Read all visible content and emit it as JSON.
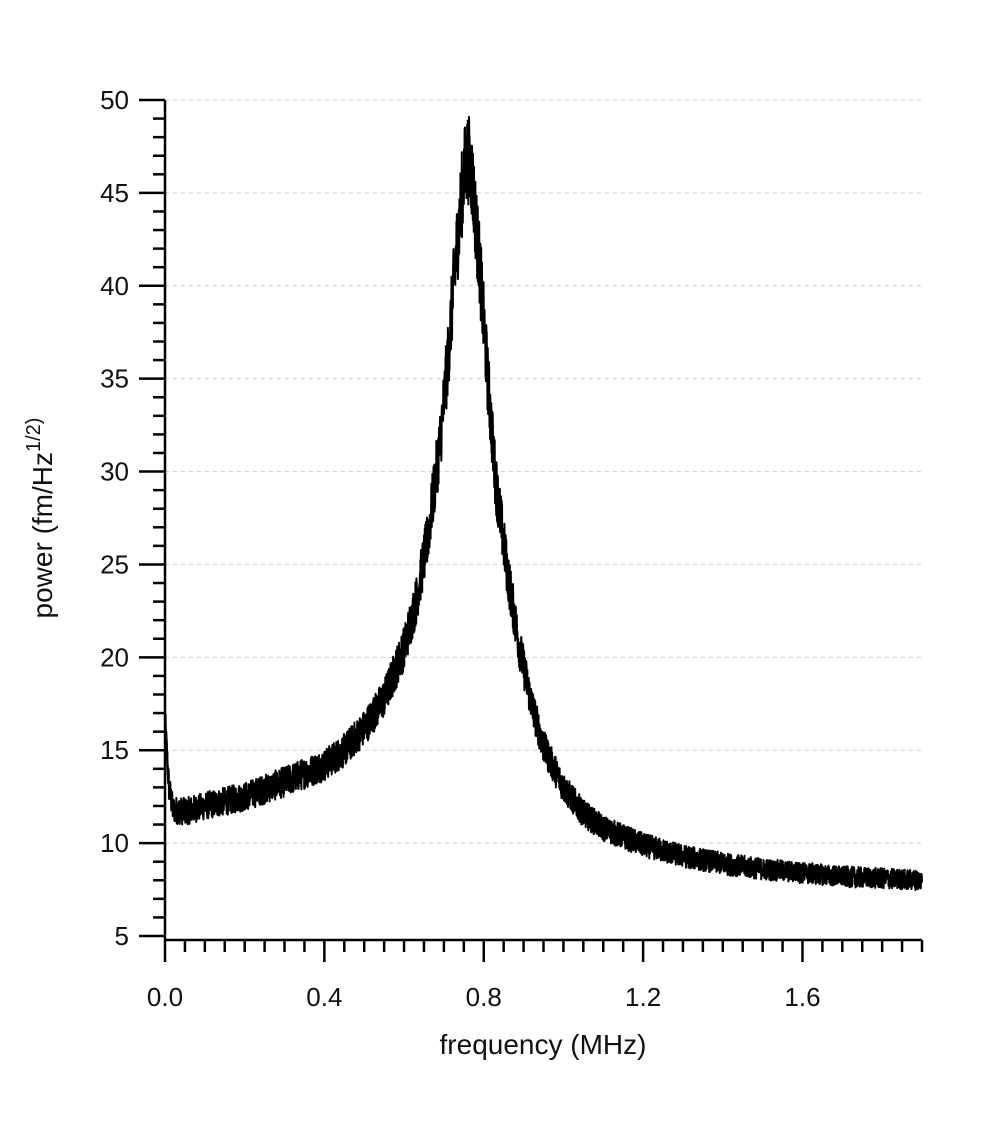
{
  "chart_data": {
    "type": "line",
    "title": "",
    "xlabel": "frequency (MHz)",
    "ylabel": "power (fm/Hz",
    "ylabel_superscript": "1/2)",
    "xlim": [
      0.0,
      1.9
    ],
    "ylim": [
      5,
      50
    ],
    "x_ticks": [
      0.0,
      0.4,
      0.8,
      1.2,
      1.6
    ],
    "x_tick_labels": [
      "0.0",
      "0.4",
      "0.8",
      "1.2",
      "1.6"
    ],
    "x_minor_step": 0.05,
    "y_ticks": [
      5,
      10,
      15,
      20,
      25,
      30,
      35,
      40,
      45,
      50
    ],
    "y_tick_labels": [
      "5",
      "10",
      "15",
      "20",
      "25",
      "30",
      "35",
      "40",
      "45",
      "50"
    ],
    "y_minor_step": 1,
    "grid": "horizontal dashed",
    "line_color": "#000000",
    "grid_color": "#cfcfcf",
    "series": [
      {
        "x": [
          0.0,
          0.01,
          0.02,
          0.05,
          0.1,
          0.2,
          0.3,
          0.4,
          0.45,
          0.5,
          0.55,
          0.6,
          0.63,
          0.66,
          0.69,
          0.71,
          0.73,
          0.75,
          0.76,
          0.77,
          0.79,
          0.81,
          0.83,
          0.86,
          0.89,
          0.92,
          0.95,
          1.0,
          1.05,
          1.1,
          1.2,
          1.3,
          1.4,
          1.5,
          1.6,
          1.7,
          1.8,
          1.9
        ],
        "y": [
          16.5,
          13.0,
          11.8,
          11.7,
          12.0,
          12.5,
          13.3,
          14.2,
          15.0,
          16.2,
          17.8,
          20.5,
          23.0,
          26.5,
          31.5,
          36.0,
          41.5,
          46.0,
          47.0,
          46.0,
          41.0,
          35.0,
          29.5,
          24.5,
          20.5,
          17.5,
          15.2,
          13.0,
          11.6,
          10.8,
          9.9,
          9.3,
          8.9,
          8.6,
          8.4,
          8.2,
          8.1,
          8.0
        ]
      }
    ]
  }
}
